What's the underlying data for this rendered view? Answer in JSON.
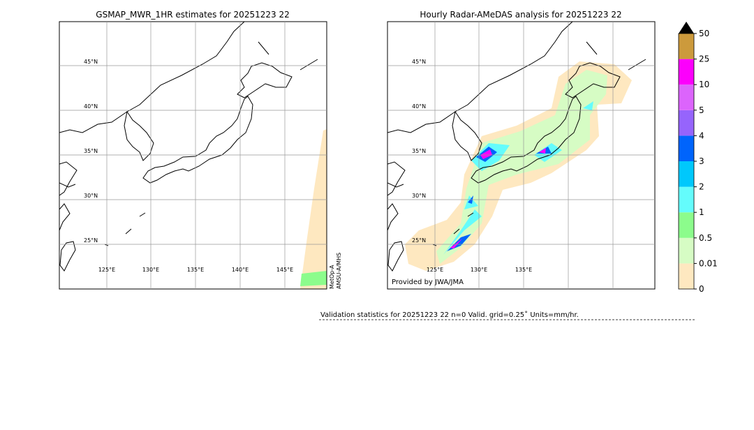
{
  "left_panel": {
    "title": "GSMAP_MWR_1HR estimates for 20251223 22",
    "lat_labels": [
      "45°N",
      "40°N",
      "35°N",
      "30°N",
      "25°N"
    ],
    "lon_labels": [
      "125°E",
      "130°E",
      "135°E",
      "140°E",
      "145°E"
    ],
    "satellite": [
      "MetOp-A",
      "AMSU-A/MHS"
    ]
  },
  "right_panel": {
    "title": "Hourly Radar-AMeDAS analysis for 20251223 22",
    "lat_labels": [
      "45°N",
      "40°N",
      "35°N",
      "30°N",
      "25°N"
    ],
    "lon_labels": [
      "125°E",
      "130°E",
      "135°E"
    ],
    "credit": "Provided by JWA/JMA"
  },
  "colorbar": {
    "labels": [
      0,
      0.01,
      0.5,
      1,
      2,
      3,
      4,
      5,
      10,
      25,
      50
    ],
    "colors": [
      "#fee8c0",
      "#d6fcc4",
      "#8cfc8c",
      "#64fcfc",
      "#00c8fc",
      "#0064fc",
      "#9664fc",
      "#dc64fc",
      "#fc00fc",
      "#cc9a3c"
    ],
    "extend_color": "#000000"
  },
  "validation": "Validation statistics for 20251223 22  n=0 Valid. grid=0.25˚ Units=mm/hr."
}
